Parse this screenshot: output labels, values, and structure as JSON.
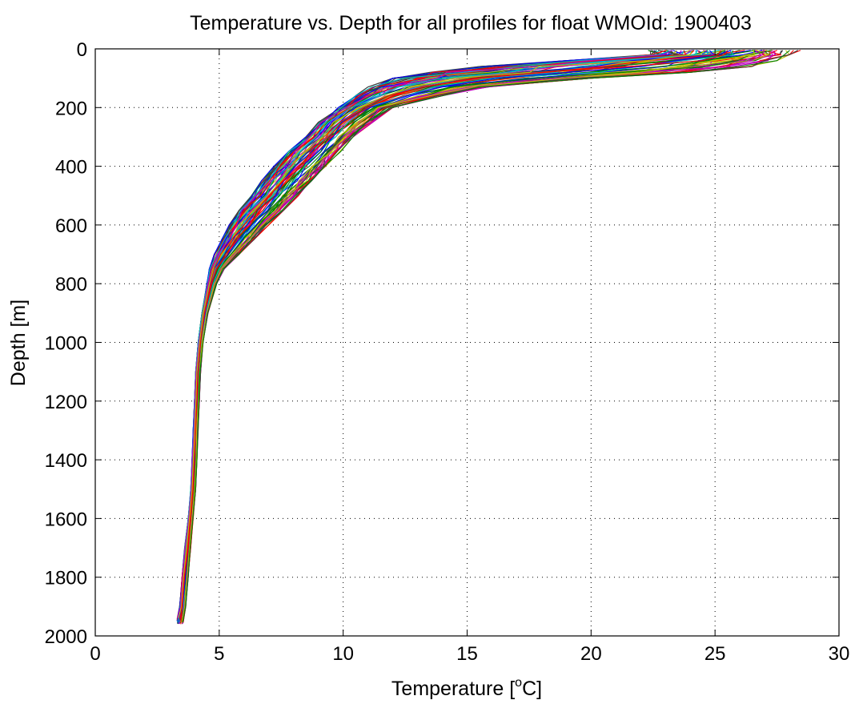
{
  "chart_data": {
    "type": "line",
    "title": "Temperature vs. Depth for all profiles for float WMOId: 1900403",
    "xlabel_prefix": "Temperature [",
    "xlabel_sup": "o",
    "xlabel_suffix": "C]",
    "ylabel": "Depth [m]",
    "xlim": [
      0,
      30
    ],
    "ylim": [
      0,
      2000
    ],
    "y_reversed": true,
    "grid": true,
    "x_ticks": [
      0,
      5,
      10,
      15,
      20,
      25,
      30
    ],
    "y_ticks": [
      0,
      200,
      400,
      600,
      800,
      1000,
      1200,
      1400,
      1600,
      1800,
      2000
    ],
    "profile_count": 90,
    "series_colors": [
      "#0000ff",
      "#008000",
      "#ff0000",
      "#00bfbf",
      "#bf00bf",
      "#bfbf00",
      "#404040"
    ],
    "representative_profile": {
      "depth": [
        5,
        20,
        40,
        60,
        80,
        100,
        130,
        160,
        200,
        250,
        300,
        350,
        400,
        450,
        500,
        550,
        600,
        650,
        700,
        750,
        800,
        900,
        1000,
        1100,
        1200,
        1300,
        1400,
        1500,
        1600,
        1700,
        1800,
        1900,
        1960
      ],
      "temperature": [
        25.5,
        25.4,
        24.5,
        21.5,
        18.0,
        15.5,
        13.2,
        12.0,
        11.0,
        10.0,
        9.4,
        8.8,
        8.2,
        7.6,
        7.0,
        6.5,
        6.0,
        5.5,
        5.05,
        4.8,
        4.65,
        4.4,
        4.25,
        4.15,
        4.1,
        4.05,
        4.0,
        3.95,
        3.85,
        3.75,
        3.6,
        3.5,
        3.45
      ]
    },
    "sample_envelope": {
      "depth": [
        5,
        20,
        40,
        60,
        80,
        100,
        130,
        160,
        200,
        250,
        300,
        350,
        400,
        450,
        500,
        550,
        600,
        650,
        700,
        750,
        800,
        900,
        1000,
        1100,
        1200,
        1300,
        1400,
        1500,
        1600,
        1700,
        1800,
        1900,
        1960
      ],
      "temperature_min": [
        22.5,
        22.4,
        19.0,
        15.5,
        13.5,
        12.0,
        11.0,
        10.5,
        9.8,
        9.0,
        8.5,
        7.8,
        7.2,
        6.7,
        6.3,
        5.8,
        5.4,
        5.1,
        4.8,
        4.6,
        4.5,
        4.3,
        4.15,
        4.05,
        4.0,
        3.95,
        3.9,
        3.85,
        3.75,
        3.6,
        3.5,
        3.4,
        3.3
      ],
      "temperature_max": [
        28.2,
        28.0,
        27.5,
        26.5,
        24.0,
        20.0,
        16.0,
        14.0,
        12.0,
        11.2,
        10.4,
        9.9,
        9.4,
        8.8,
        8.2,
        7.6,
        7.0,
        6.4,
        5.8,
        5.2,
        4.9,
        4.55,
        4.35,
        4.25,
        4.2,
        4.15,
        4.1,
        4.05,
        3.95,
        3.85,
        3.75,
        3.65,
        3.55
      ]
    }
  }
}
